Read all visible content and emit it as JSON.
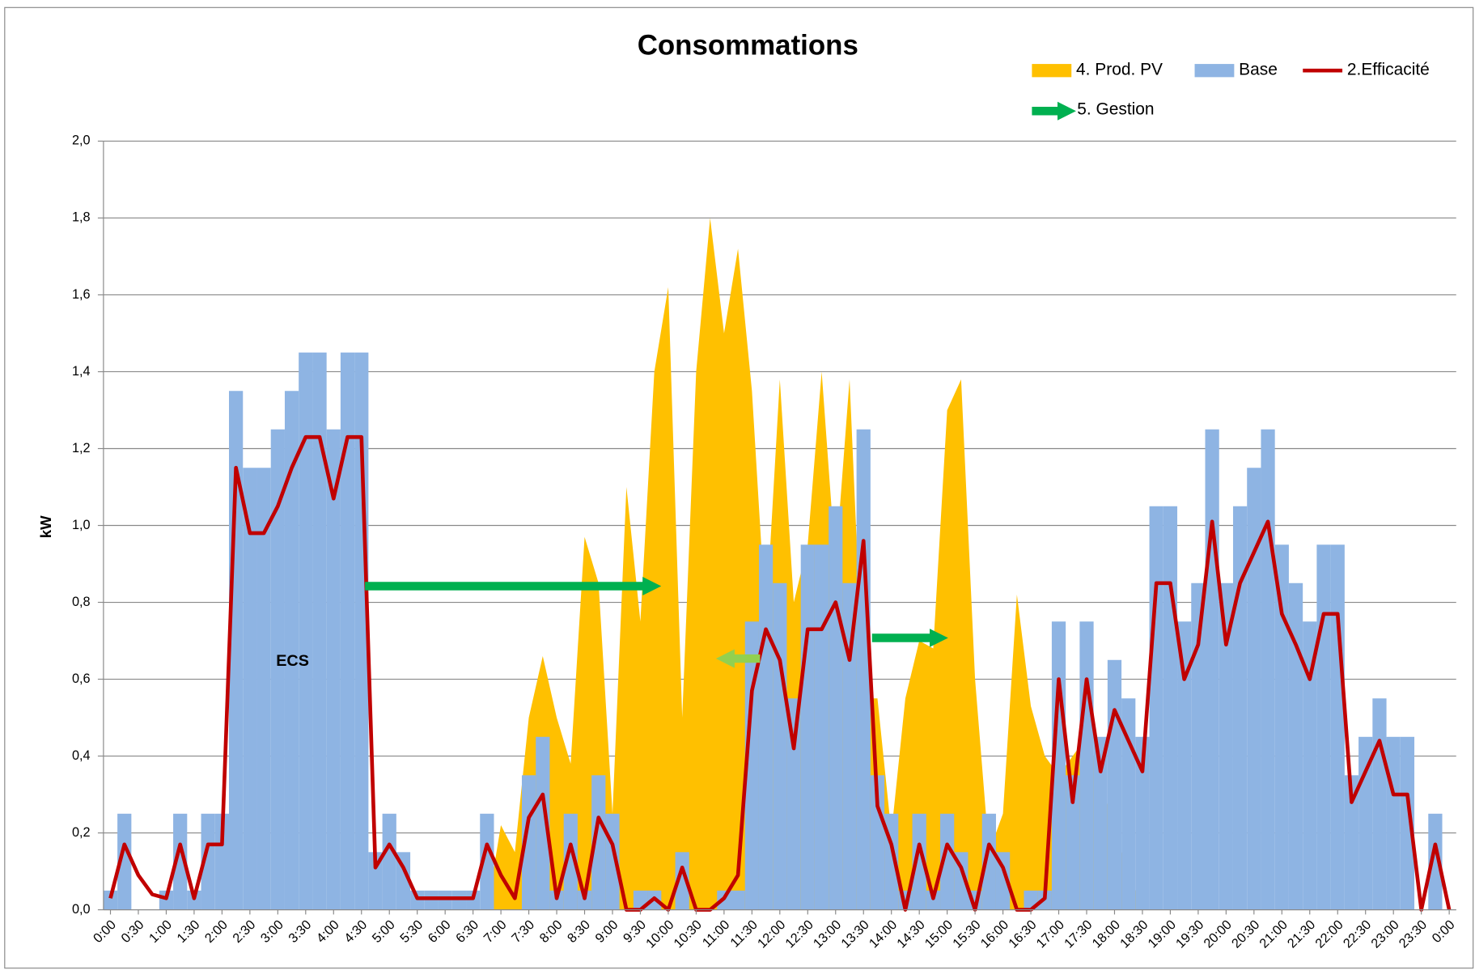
{
  "chart_data": {
    "type": "bar",
    "title": "Consommations",
    "y_label": "kW",
    "annotation": "ECS",
    "gestion_legend": {
      "name": "5. Gestion",
      "color": "#00b050"
    },
    "categories": [
      "0:00",
      null,
      "0:30",
      null,
      "1:00",
      null,
      "1:30",
      null,
      "2:00",
      null,
      "2:30",
      null,
      "3:00",
      null,
      "3:30",
      null,
      "4:00",
      null,
      "4:30",
      null,
      "5:00",
      null,
      "5:30",
      null,
      "6:00",
      null,
      "6:30",
      null,
      "7:00",
      null,
      "7:30",
      null,
      "8:00",
      null,
      "8:30",
      null,
      "9:00",
      null,
      "9:30",
      null,
      "10:00",
      null,
      "10:30",
      null,
      "11:00",
      null,
      "11:30",
      null,
      "12:00",
      null,
      "12:30",
      null,
      "13:00",
      null,
      "13:30",
      null,
      "14:00",
      null,
      "14:30",
      null,
      "15:00",
      null,
      "15:30",
      null,
      "16:00",
      null,
      "16:30",
      null,
      "17:00",
      null,
      "17:30",
      null,
      "18:00",
      null,
      "18:30",
      null,
      "19:00",
      null,
      "19:30",
      null,
      "20:00",
      null,
      "20:30",
      null,
      "21:00",
      null,
      "21:30",
      null,
      "22:00",
      null,
      "22:30",
      null,
      "23:00",
      null,
      "23:30",
      null,
      "0:00"
    ],
    "series": [
      {
        "name": "4. Prod. PV",
        "type": "area",
        "color": "#ffc000",
        "values": [
          0,
          0,
          0,
          0,
          0,
          0,
          0,
          0,
          0,
          0,
          0,
          0,
          0,
          0,
          0,
          0,
          0,
          0,
          0,
          0,
          0,
          0,
          0,
          0,
          0,
          0,
          0,
          0,
          0.22,
          0.15,
          0.5,
          0.66,
          0.5,
          0.38,
          0.97,
          0.85,
          0.25,
          1.1,
          0.75,
          1.4,
          1.62,
          0.5,
          1.4,
          1.8,
          1.5,
          1.72,
          1.35,
          0.75,
          1.38,
          0.8,
          0.95,
          1.4,
          0.9,
          1.38,
          0.55,
          0.55,
          0.2,
          0.55,
          0.7,
          0.68,
          1.3,
          1.38,
          0.6,
          0.15,
          0.25,
          0.82,
          0.53,
          0.4,
          0.35,
          0.4,
          0.45,
          0.35,
          0.2,
          0.1,
          0,
          0,
          0,
          0,
          0,
          0,
          0,
          0,
          0,
          0,
          0,
          0,
          0,
          0,
          0,
          0,
          0,
          0,
          0,
          0,
          0,
          0,
          0
        ]
      },
      {
        "name": "Base",
        "type": "bar",
        "color": "#8eb4e3",
        "values": [
          0.05,
          0.25,
          0,
          0,
          0.05,
          0.25,
          0.05,
          0.25,
          0.25,
          1.35,
          1.15,
          1.15,
          1.25,
          1.35,
          1.45,
          1.45,
          1.25,
          1.45,
          1.45,
          0.15,
          0.25,
          0.15,
          0.05,
          0.05,
          0.05,
          0.05,
          0.05,
          0.25,
          0,
          0,
          0.35,
          0.45,
          0.05,
          0.25,
          0.05,
          0.35,
          0.25,
          0,
          0.05,
          0.05,
          0,
          0.15,
          0,
          0,
          0.05,
          0.05,
          0.75,
          0.95,
          0.85,
          0.55,
          0.95,
          0.95,
          1.05,
          0.85,
          1.25,
          0.35,
          0.25,
          0.05,
          0.25,
          0.05,
          0.25,
          0.15,
          0.05,
          0.25,
          0.15,
          0,
          0.05,
          0.05,
          0.75,
          0.35,
          0.75,
          0.45,
          0.65,
          0.55,
          0.45,
          1.05,
          1.05,
          0.75,
          0.85,
          1.25,
          0.85,
          1.05,
          1.15,
          1.25,
          0.95,
          0.85,
          0.75,
          0.95,
          0.95,
          0.35,
          0.45,
          0.55,
          0.45,
          0.45,
          0,
          0.25,
          0
        ]
      },
      {
        "name": "2.Efficacité",
        "type": "line",
        "color": "#c00000",
        "values": [
          0.03,
          0.17,
          0.09,
          0.04,
          0.03,
          0.17,
          0.03,
          0.17,
          0.17,
          1.15,
          0.98,
          0.98,
          1.05,
          1.15,
          1.23,
          1.23,
          1.07,
          1.23,
          1.23,
          0.11,
          0.17,
          0.11,
          0.03,
          0.03,
          0.03,
          0.03,
          0.03,
          0.17,
          0.09,
          0.03,
          0.24,
          0.3,
          0.03,
          0.17,
          0.03,
          0.24,
          0.17,
          0,
          0,
          0.03,
          0,
          0.11,
          0,
          0,
          0.03,
          0.09,
          0.57,
          0.73,
          0.65,
          0.42,
          0.73,
          0.73,
          0.8,
          0.65,
          0.96,
          0.27,
          0.17,
          0,
          0.17,
          0.03,
          0.17,
          0.11,
          0,
          0.17,
          0.11,
          0,
          0,
          0.03,
          0.6,
          0.28,
          0.6,
          0.36,
          0.52,
          0.44,
          0.36,
          0.85,
          0.85,
          0.6,
          0.69,
          1.01,
          0.69,
          0.85,
          0.93,
          1.01,
          0.77,
          0.69,
          0.6,
          0.77,
          0.77,
          0.28,
          0.36,
          0.44,
          0.3,
          0.3,
          0,
          0.17,
          0
        ]
      }
    ],
    "ylim": [
      0,
      2
    ],
    "yticks": [
      {
        "value": 0,
        "label": "0,0"
      },
      {
        "value": 0.2,
        "label": "0,2"
      },
      {
        "value": 0.4,
        "label": "0,4"
      },
      {
        "value": 0.6,
        "label": "0,6"
      },
      {
        "value": 0.8,
        "label": "0,8"
      },
      {
        "value": 1,
        "label": "1,0"
      },
      {
        "value": 1.2,
        "label": "1,2"
      },
      {
        "value": 1.4,
        "label": "1,4"
      },
      {
        "value": 1.6,
        "label": "1,6"
      },
      {
        "value": 1.8,
        "label": "1,8"
      },
      {
        "value": 2,
        "label": "2,0"
      }
    ],
    "grid": true,
    "legend": "top-right"
  }
}
